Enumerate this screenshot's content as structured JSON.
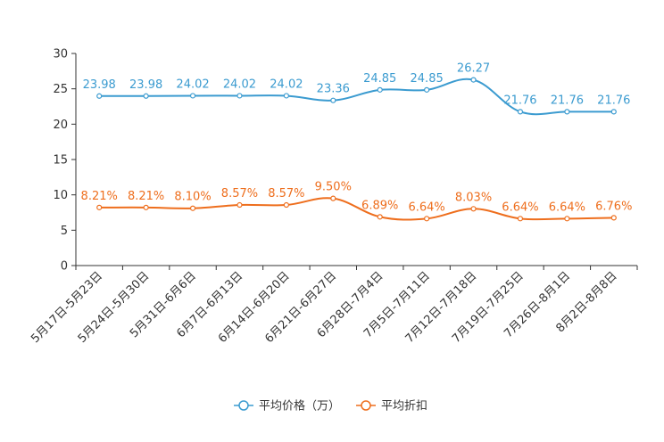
{
  "chart_data": {
    "type": "line",
    "title": "",
    "xlabel": "",
    "ylabel": "",
    "ylim": [
      0,
      30
    ],
    "yticks": [
      0,
      5,
      10,
      15,
      20,
      25,
      30
    ],
    "grid": false,
    "legend_position": "bottom-center",
    "categories": [
      "5月17日-5月23日",
      "5月24日-5月30日",
      "5月31日-6月6日",
      "6月7日-6月13日",
      "6月14日-6月20日",
      "6月21日-6月27日",
      "6月28日-7月4日",
      "7月5日-7月11日",
      "7月12日-7月18日",
      "7月19日-7月25日",
      "7月26日-8月1日",
      "8月2日-8月8日"
    ],
    "series": [
      {
        "name": "平均价格（万）",
        "color": "#3b9bd0",
        "values": [
          23.98,
          23.98,
          24.02,
          24.02,
          24.02,
          23.36,
          24.85,
          24.85,
          26.27,
          21.76,
          21.76,
          21.76
        ],
        "labels": [
          "23.98",
          "23.98",
          "24.02",
          "24.02",
          "24.02",
          "23.36",
          "24.85",
          "24.85",
          "26.27",
          "21.76",
          "21.76",
          "21.76"
        ]
      },
      {
        "name": "平均折扣",
        "color": "#ee6e1d",
        "values": [
          8.21,
          8.21,
          8.1,
          8.57,
          8.57,
          9.5,
          6.89,
          6.64,
          8.03,
          6.64,
          6.64,
          6.76
        ],
        "labels": [
          "8.21%",
          "8.21%",
          "8.10%",
          "8.57%",
          "8.57%",
          "9.50%",
          "6.89%",
          "6.64%",
          "8.03%",
          "6.64%",
          "6.64%",
          "6.76%"
        ]
      }
    ]
  }
}
